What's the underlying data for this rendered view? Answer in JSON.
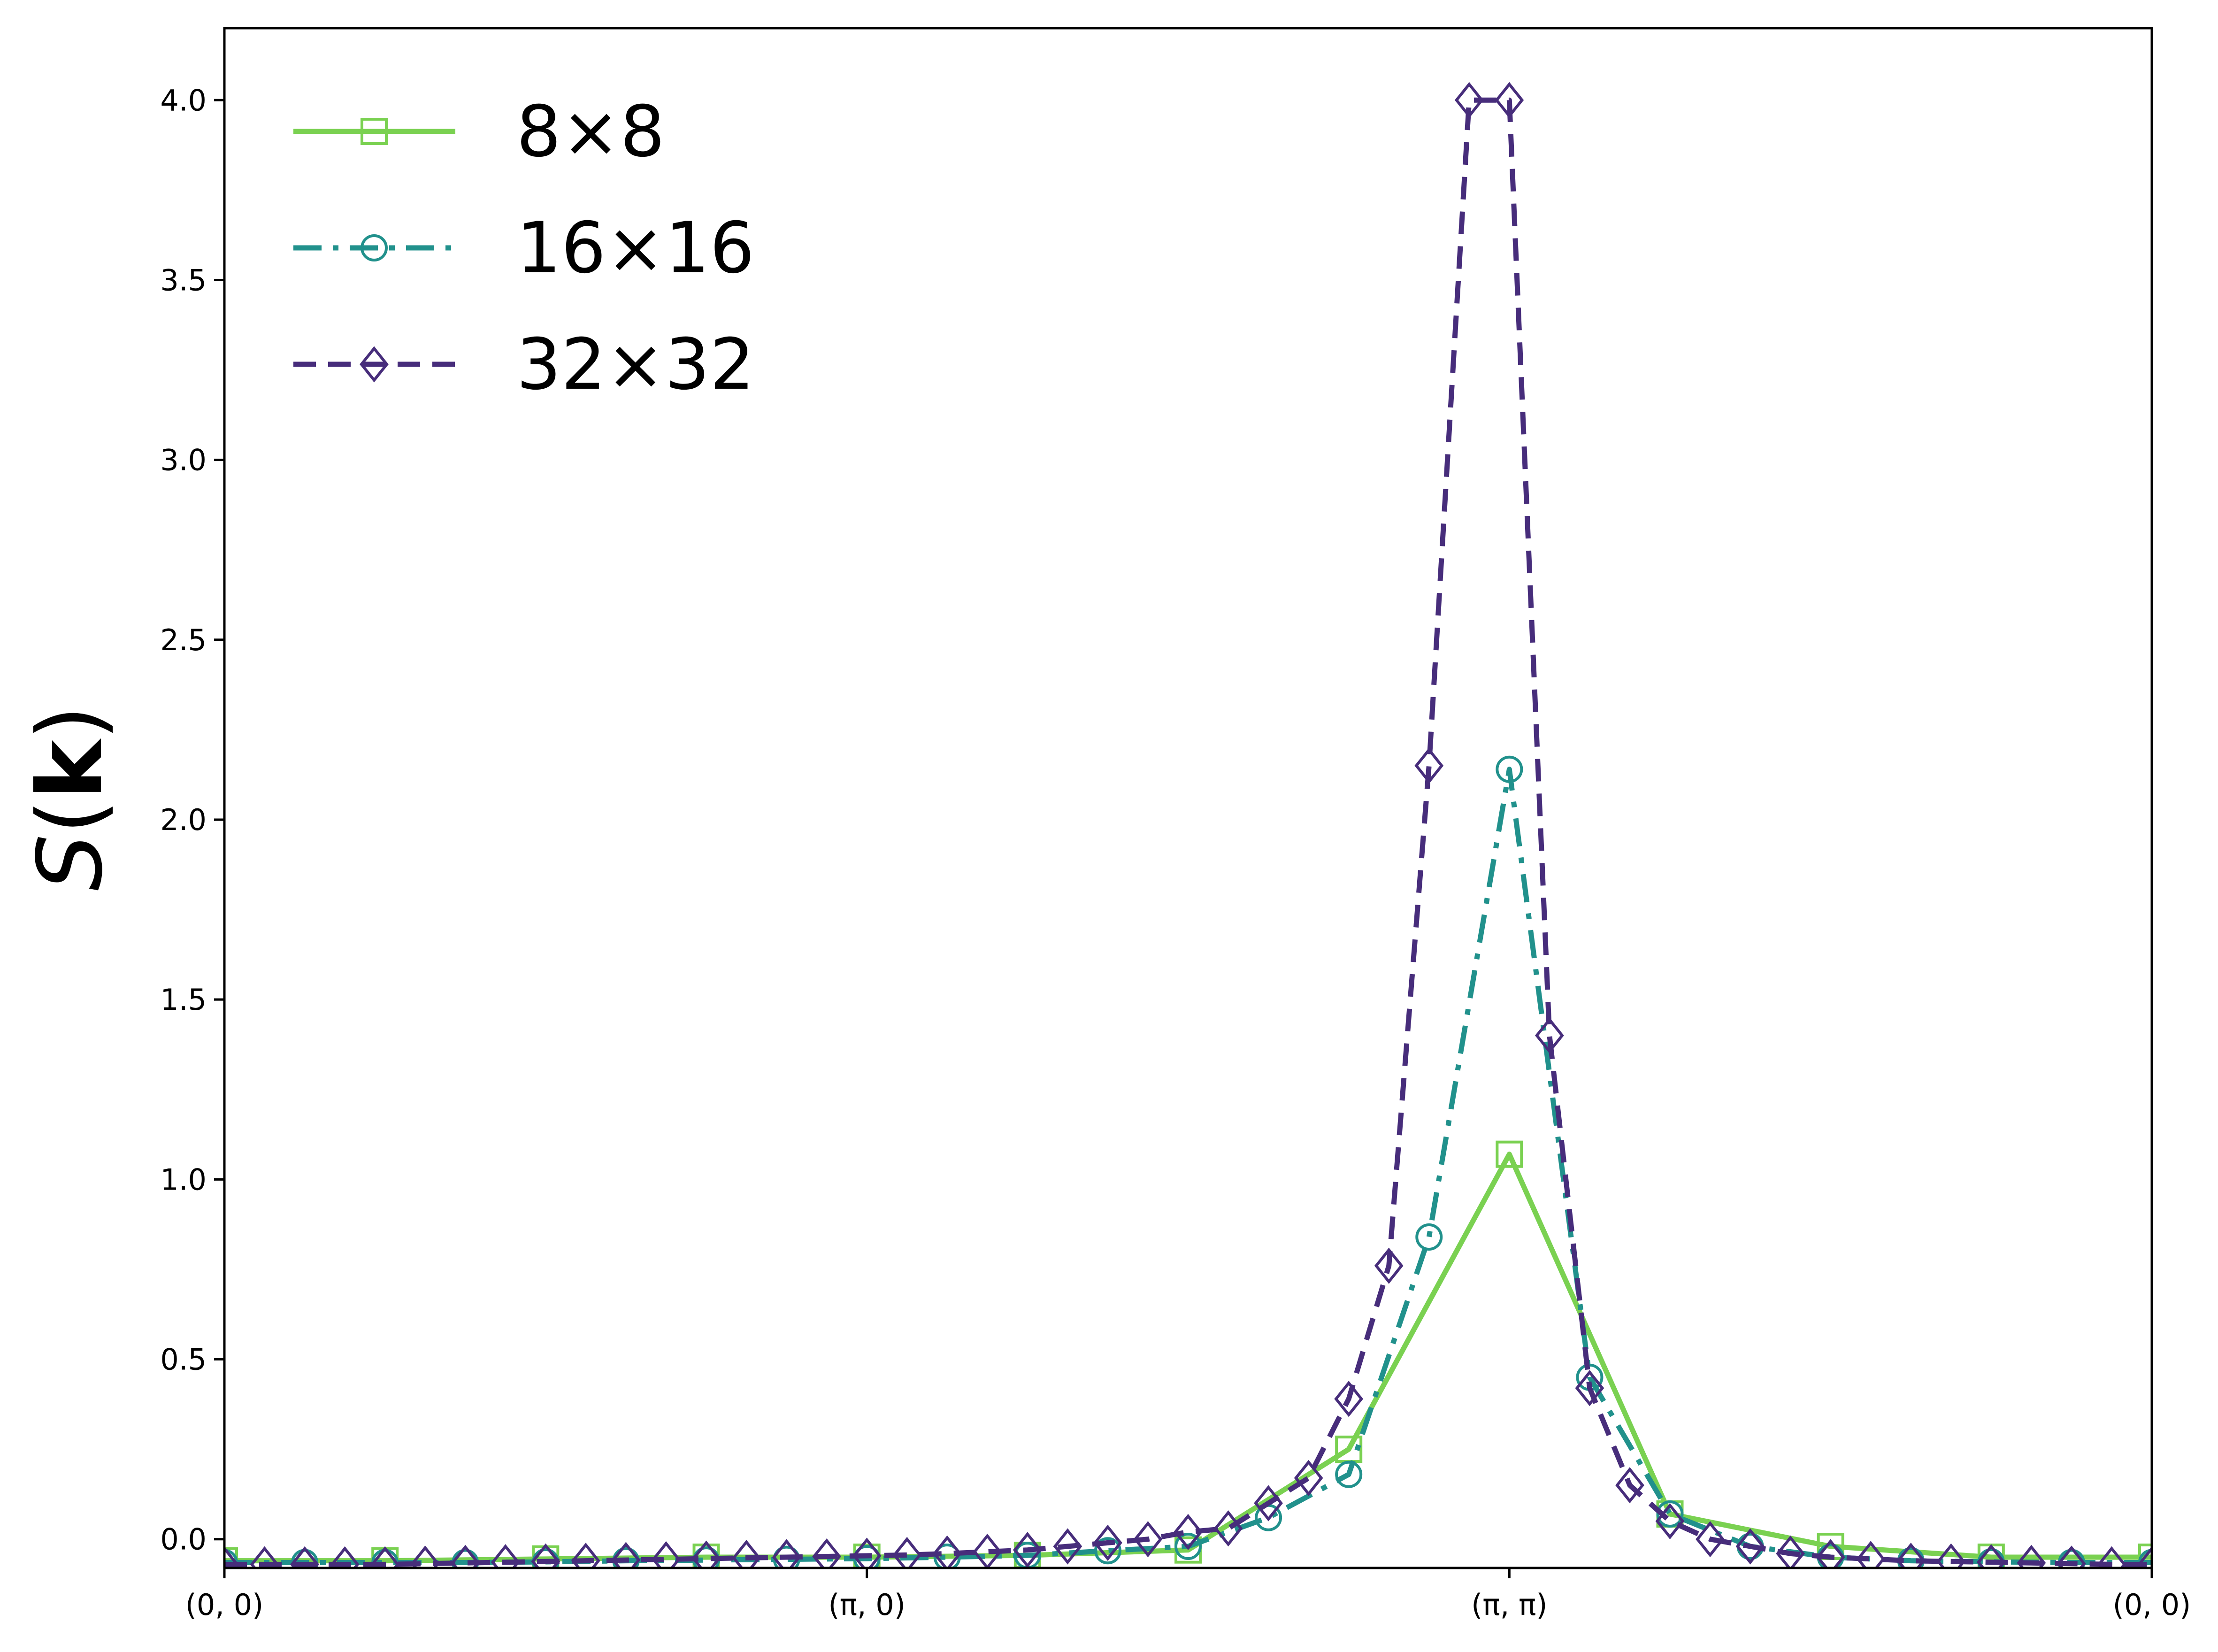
{
  "chart_data": {
    "type": "line",
    "ylabel": {
      "main": "S",
      "open": "(",
      "bold": "k",
      "close": ")"
    },
    "xlim": [
      0,
      48
    ],
    "ylim": [
      -0.08,
      4.2
    ],
    "xticks": [
      {
        "x": 0,
        "label": "(0, 0)"
      },
      {
        "x": 16,
        "label": "(π, 0)"
      },
      {
        "x": 32,
        "label": "(π, π)"
      },
      {
        "x": 48,
        "label": "(0, 0)"
      }
    ],
    "yticks": [
      {
        "y": 0.0,
        "label": "0.0"
      },
      {
        "y": 0.5,
        "label": "0.5"
      },
      {
        "y": 1.0,
        "label": "1.0"
      },
      {
        "y": 1.5,
        "label": "1.5"
      },
      {
        "y": 2.0,
        "label": "2.0"
      },
      {
        "y": 2.5,
        "label": "2.5"
      },
      {
        "y": 3.0,
        "label": "3.0"
      },
      {
        "y": 3.5,
        "label": "3.5"
      },
      {
        "y": 4.0,
        "label": "4.0"
      }
    ],
    "legend": "top-left",
    "grid": false,
    "series": [
      {
        "name": "8×8",
        "color": "#7ad151",
        "marker": "square",
        "line": "solid",
        "x": [
          0,
          4,
          8,
          12,
          16,
          20,
          24,
          28,
          32,
          36,
          40,
          44,
          48
        ],
        "y": [
          -0.06,
          -0.06,
          -0.055,
          -0.05,
          -0.05,
          -0.045,
          -0.03,
          0.25,
          1.07,
          0.07,
          -0.02,
          -0.05,
          -0.05
        ]
      },
      {
        "name": "16×16",
        "color": "#21918c",
        "marker": "circle",
        "line": "dashdot",
        "x": [
          0,
          2,
          4,
          6,
          8,
          10,
          12,
          14,
          16,
          18,
          20,
          22,
          24,
          26,
          28,
          30,
          32,
          34,
          36,
          38,
          40,
          42,
          44,
          46,
          48
        ],
        "y": [
          -0.065,
          -0.065,
          -0.065,
          -0.065,
          -0.063,
          -0.06,
          -0.058,
          -0.056,
          -0.054,
          -0.05,
          -0.045,
          -0.032,
          -0.02,
          0.06,
          0.18,
          0.84,
          2.14,
          0.45,
          0.07,
          -0.02,
          -0.05,
          -0.06,
          -0.063,
          -0.065,
          -0.065
        ]
      },
      {
        "name": "32×32",
        "color": "#472d7b",
        "marker": "diamond",
        "line": "dashed",
        "x": [
          0,
          1,
          2,
          3,
          4,
          5,
          6,
          7,
          8,
          9,
          10,
          11,
          12,
          13,
          14,
          15,
          16,
          17,
          18,
          19,
          20,
          21,
          22,
          23,
          24,
          25,
          26,
          27,
          28,
          29,
          30,
          31,
          32,
          33,
          34,
          35,
          36,
          37,
          38,
          39,
          40,
          41,
          42,
          43,
          44,
          45,
          46,
          47,
          48
        ],
        "y": [
          -0.07,
          -0.07,
          -0.07,
          -0.07,
          -0.07,
          -0.068,
          -0.066,
          -0.064,
          -0.062,
          -0.06,
          -0.058,
          -0.056,
          -0.054,
          -0.052,
          -0.05,
          -0.048,
          -0.046,
          -0.044,
          -0.04,
          -0.035,
          -0.03,
          -0.02,
          -0.01,
          0.0,
          0.02,
          0.03,
          0.1,
          0.17,
          0.39,
          0.76,
          2.15,
          4.0,
          4.0,
          1.4,
          0.42,
          0.15,
          0.05,
          0.0,
          -0.02,
          -0.04,
          -0.05,
          -0.055,
          -0.06,
          -0.062,
          -0.064,
          -0.066,
          -0.068,
          -0.07,
          -0.07
        ]
      }
    ]
  }
}
